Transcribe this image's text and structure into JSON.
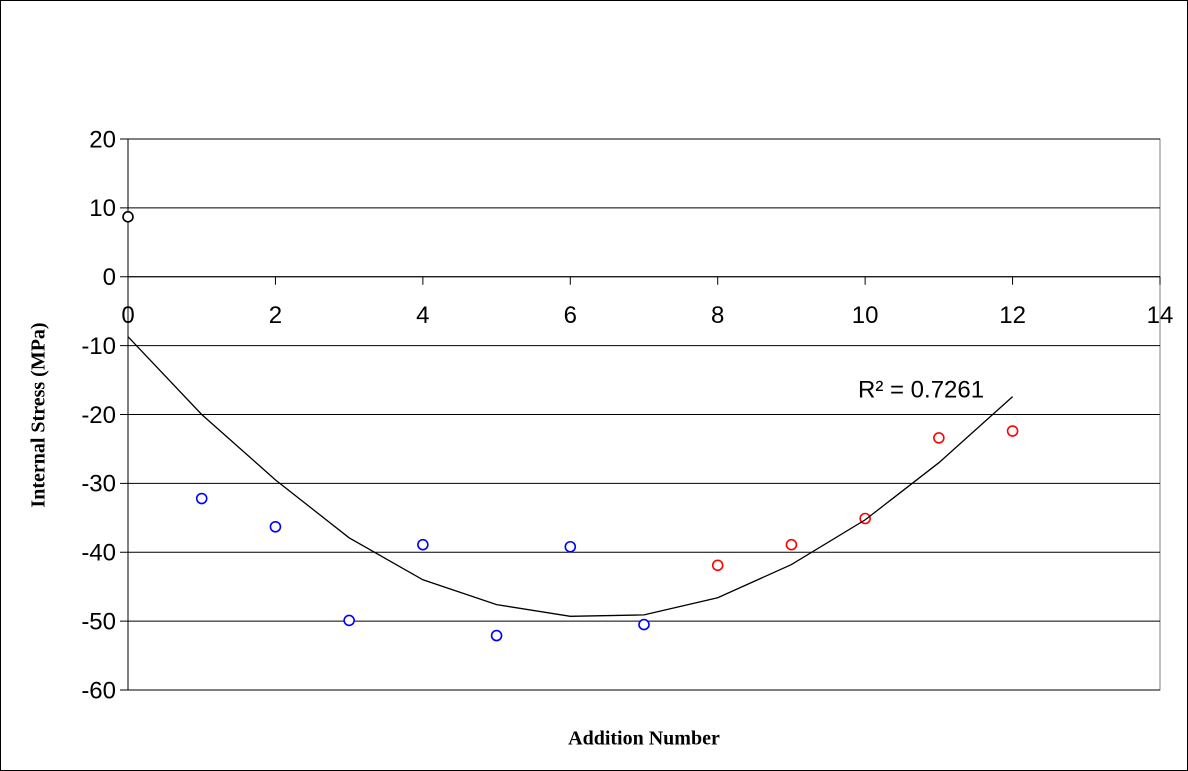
{
  "chart_data": {
    "type": "scatter",
    "xlabel": "Addition Number",
    "ylabel": "Internal Stress  (MPa)",
    "annotation": "R² = 0.7261",
    "xlim": [
      0,
      14
    ],
    "xticks": [
      0,
      2,
      4,
      6,
      8,
      10,
      12,
      14
    ],
    "ylim": [
      -60,
      20
    ],
    "yticks": [
      -60,
      -50,
      -40,
      -30,
      -20,
      -10,
      0,
      10,
      20
    ],
    "grid": true,
    "series": [
      {
        "color": "#000000",
        "style": "marker",
        "x": [
          0
        ],
        "values": [
          8.7
        ]
      },
      {
        "color": "#0000ff",
        "style": "marker",
        "x": [
          1,
          2,
          3,
          4,
          5,
          6,
          7
        ],
        "values": [
          -32.2,
          -36.3,
          -49.9,
          -38.9,
          -52.1,
          -39.2,
          -50.5
        ]
      },
      {
        "color": "#ff0000",
        "style": "marker",
        "x": [
          8,
          9,
          10,
          11,
          12
        ],
        "values": [
          -41.9,
          -38.9,
          -35.1,
          -23.4,
          -22.4
        ]
      },
      {
        "color": "#000000",
        "style": "line",
        "x": [
          0,
          1,
          2,
          3,
          4,
          5,
          6,
          7,
          8,
          9,
          10,
          11,
          12
        ],
        "values": [
          -8.7,
          -20,
          -29.5,
          -37.9,
          -44,
          -47.6,
          -49.3,
          -49.1,
          -46.6,
          -41.8,
          -35.3,
          -27,
          -17.4
        ]
      }
    ]
  }
}
